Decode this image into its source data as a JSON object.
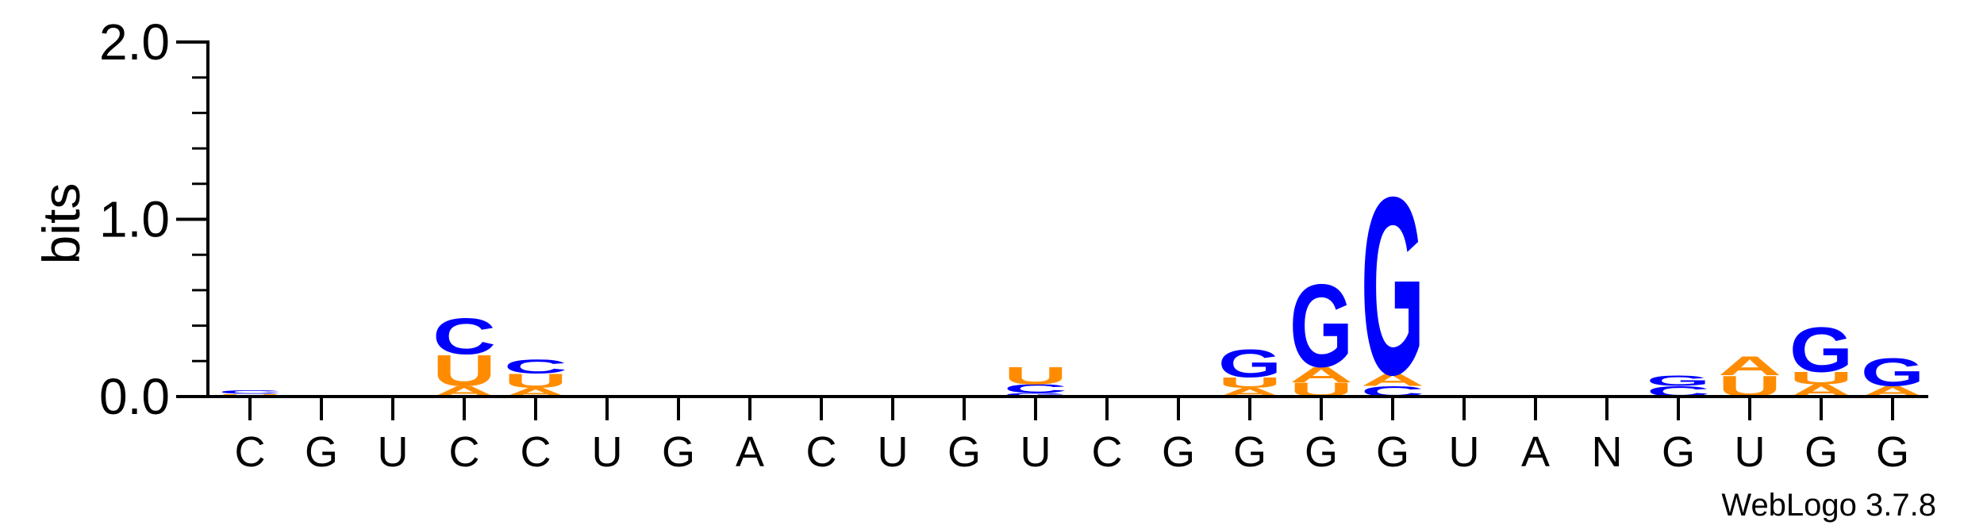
{
  "chart_data": {
    "type": "sequence_logo",
    "ylabel": "bits",
    "ylim": [
      0,
      2
    ],
    "yticks": [
      "0.0",
      "1.0",
      "2.0"
    ],
    "xlabels": [
      "C",
      "G",
      "U",
      "C",
      "C",
      "U",
      "G",
      "A",
      "C",
      "U",
      "G",
      "U",
      "C",
      "G",
      "G",
      "G",
      "G",
      "U",
      "A",
      "N",
      "G",
      "U",
      "G",
      "G"
    ],
    "colors": {
      "A": "#ff8c00",
      "U": "#ff8c00",
      "C": "#0000ff",
      "G": "#0000ff"
    },
    "positions": [
      [
        {
          "l": "U",
          "h": 0.015
        },
        {
          "l": "C",
          "h": 0.02
        }
      ],
      [],
      [],
      [
        {
          "l": "A",
          "h": 0.06
        },
        {
          "l": "U",
          "h": 0.18
        },
        {
          "l": "C",
          "h": 0.21
        }
      ],
      [
        {
          "l": "A",
          "h": 0.05
        },
        {
          "l": "U",
          "h": 0.08
        },
        {
          "l": "C",
          "h": 0.08
        }
      ],
      [],
      [],
      [],
      [],
      [],
      [],
      [
        {
          "l": "G",
          "h": 0.02
        },
        {
          "l": "C",
          "h": 0.05
        },
        {
          "l": "U",
          "h": 0.1
        }
      ],
      [],
      [],
      [
        {
          "l": "A",
          "h": 0.05
        },
        {
          "l": "U",
          "h": 0.06
        },
        {
          "l": "G",
          "h": 0.16
        }
      ],
      [
        {
          "l": "U",
          "h": 0.08
        },
        {
          "l": "A",
          "h": 0.09
        },
        {
          "l": "G",
          "h": 0.48
        }
      ],
      [
        {
          "l": "C",
          "h": 0.06
        },
        {
          "l": "A",
          "h": 0.07
        },
        {
          "l": "G",
          "h": 1.03
        }
      ],
      [],
      [],
      [],
      [
        {
          "l": "C",
          "h": 0.06
        },
        {
          "l": "G",
          "h": 0.06
        }
      ],
      [
        {
          "l": "U",
          "h": 0.12
        },
        {
          "l": "A",
          "h": 0.11
        }
      ],
      [
        {
          "l": "A",
          "h": 0.07
        },
        {
          "l": "U",
          "h": 0.07
        },
        {
          "l": "G",
          "h": 0.26
        }
      ],
      [
        {
          "l": "A",
          "h": 0.06
        },
        {
          "l": "G",
          "h": 0.16
        }
      ]
    ]
  },
  "footer": {
    "version_label": "WebLogo 3.7.8"
  }
}
